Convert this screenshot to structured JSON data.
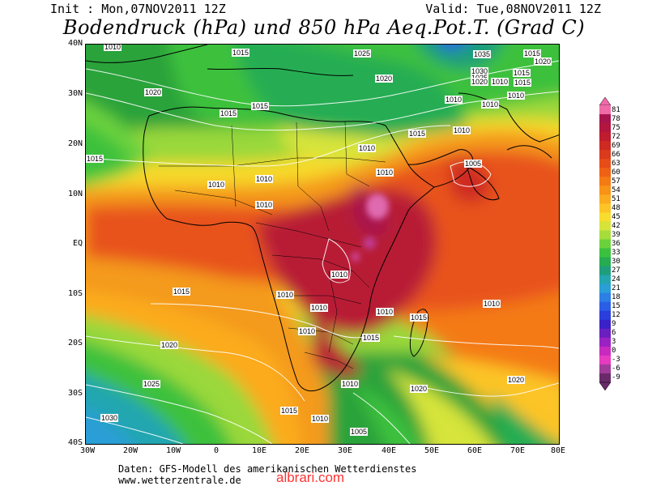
{
  "header": {
    "init": "Init : Mon,07NOV2011 12Z",
    "valid": "Valid: Tue,08NOV2011 12Z",
    "title": "Bodendruck (hPa) und 850 hPa Aeq.Pot.T. (Grad C)"
  },
  "axes": {
    "lat_labels": [
      "40N",
      "30N",
      "20N",
      "10N",
      "EQ",
      "10S",
      "20S",
      "30S",
      "40S"
    ],
    "lon_labels": [
      "30W",
      "20W",
      "10W",
      "0",
      "10E",
      "20E",
      "30E",
      "40E",
      "50E",
      "60E",
      "70E",
      "80E"
    ]
  },
  "isobar_labels": [
    {
      "text": "1010"
    },
    {
      "text": "1015"
    },
    {
      "text": "1025"
    },
    {
      "text": "1035"
    },
    {
      "text": "1015"
    },
    {
      "text": "1020"
    },
    {
      "text": "1020"
    },
    {
      "text": "1030"
    },
    {
      "text": "1025"
    },
    {
      "text": "1020"
    },
    {
      "text": "1010"
    },
    {
      "text": "1015"
    },
    {
      "text": "1020"
    },
    {
      "text": "1015"
    },
    {
      "text": "1015"
    },
    {
      "text": "1010"
    },
    {
      "text": "1010"
    },
    {
      "text": "1010"
    },
    {
      "text": "1015"
    },
    {
      "text": "1010"
    },
    {
      "text": "1015"
    },
    {
      "text": "1010"
    },
    {
      "text": "1005"
    },
    {
      "text": "1010"
    },
    {
      "text": "1010"
    },
    {
      "text": "1010"
    },
    {
      "text": "1010"
    },
    {
      "text": "1010"
    },
    {
      "text": "1015"
    },
    {
      "text": "1010"
    },
    {
      "text": "1010"
    },
    {
      "text": "1010"
    },
    {
      "text": "1010"
    },
    {
      "text": "1015"
    },
    {
      "text": "1020"
    },
    {
      "text": "1010"
    },
    {
      "text": "1015"
    },
    {
      "text": "1025"
    },
    {
      "text": "1020"
    },
    {
      "text": "1020"
    },
    {
      "text": "1015"
    },
    {
      "text": "1010"
    },
    {
      "text": "1030"
    },
    {
      "text": "1005"
    },
    {
      "text": "1010"
    },
    {
      "text": "1015"
    }
  ],
  "colorbar": {
    "labels": [
      "81",
      "78",
      "75",
      "72",
      "69",
      "66",
      "63",
      "60",
      "57",
      "54",
      "51",
      "48",
      "45",
      "42",
      "39",
      "36",
      "33",
      "30",
      "27",
      "24",
      "21",
      "18",
      "15",
      "12",
      "9",
      "6",
      "3",
      "0",
      "-3",
      "-6",
      "-9"
    ],
    "colors": [
      "#f06aa8",
      "#a8154e",
      "#b2163f",
      "#c01c2f",
      "#cf2a22",
      "#dc3a1c",
      "#e64d17",
      "#ef6215",
      "#f47a14",
      "#f89317",
      "#fbab1f",
      "#fcc427",
      "#f8dc2e",
      "#d6e43a",
      "#a6dd3c",
      "#6cd23c",
      "#3cc13e",
      "#26ad52",
      "#1f9e7c",
      "#24a6b0",
      "#2a9ed6",
      "#2c7fe5",
      "#2a5ee6",
      "#2a3fdc",
      "#3b22c8",
      "#6a1fc0",
      "#9a22c4",
      "#c82ac0",
      "#e73bc0",
      "#a23c9a",
      "#6a2a6a"
    ]
  },
  "footer": {
    "line1": "Daten: GFS-Modell des amerikanischen Wetterdienstes",
    "line2": "www.wetterzentrale.de",
    "watermark": "albrari.com"
  }
}
